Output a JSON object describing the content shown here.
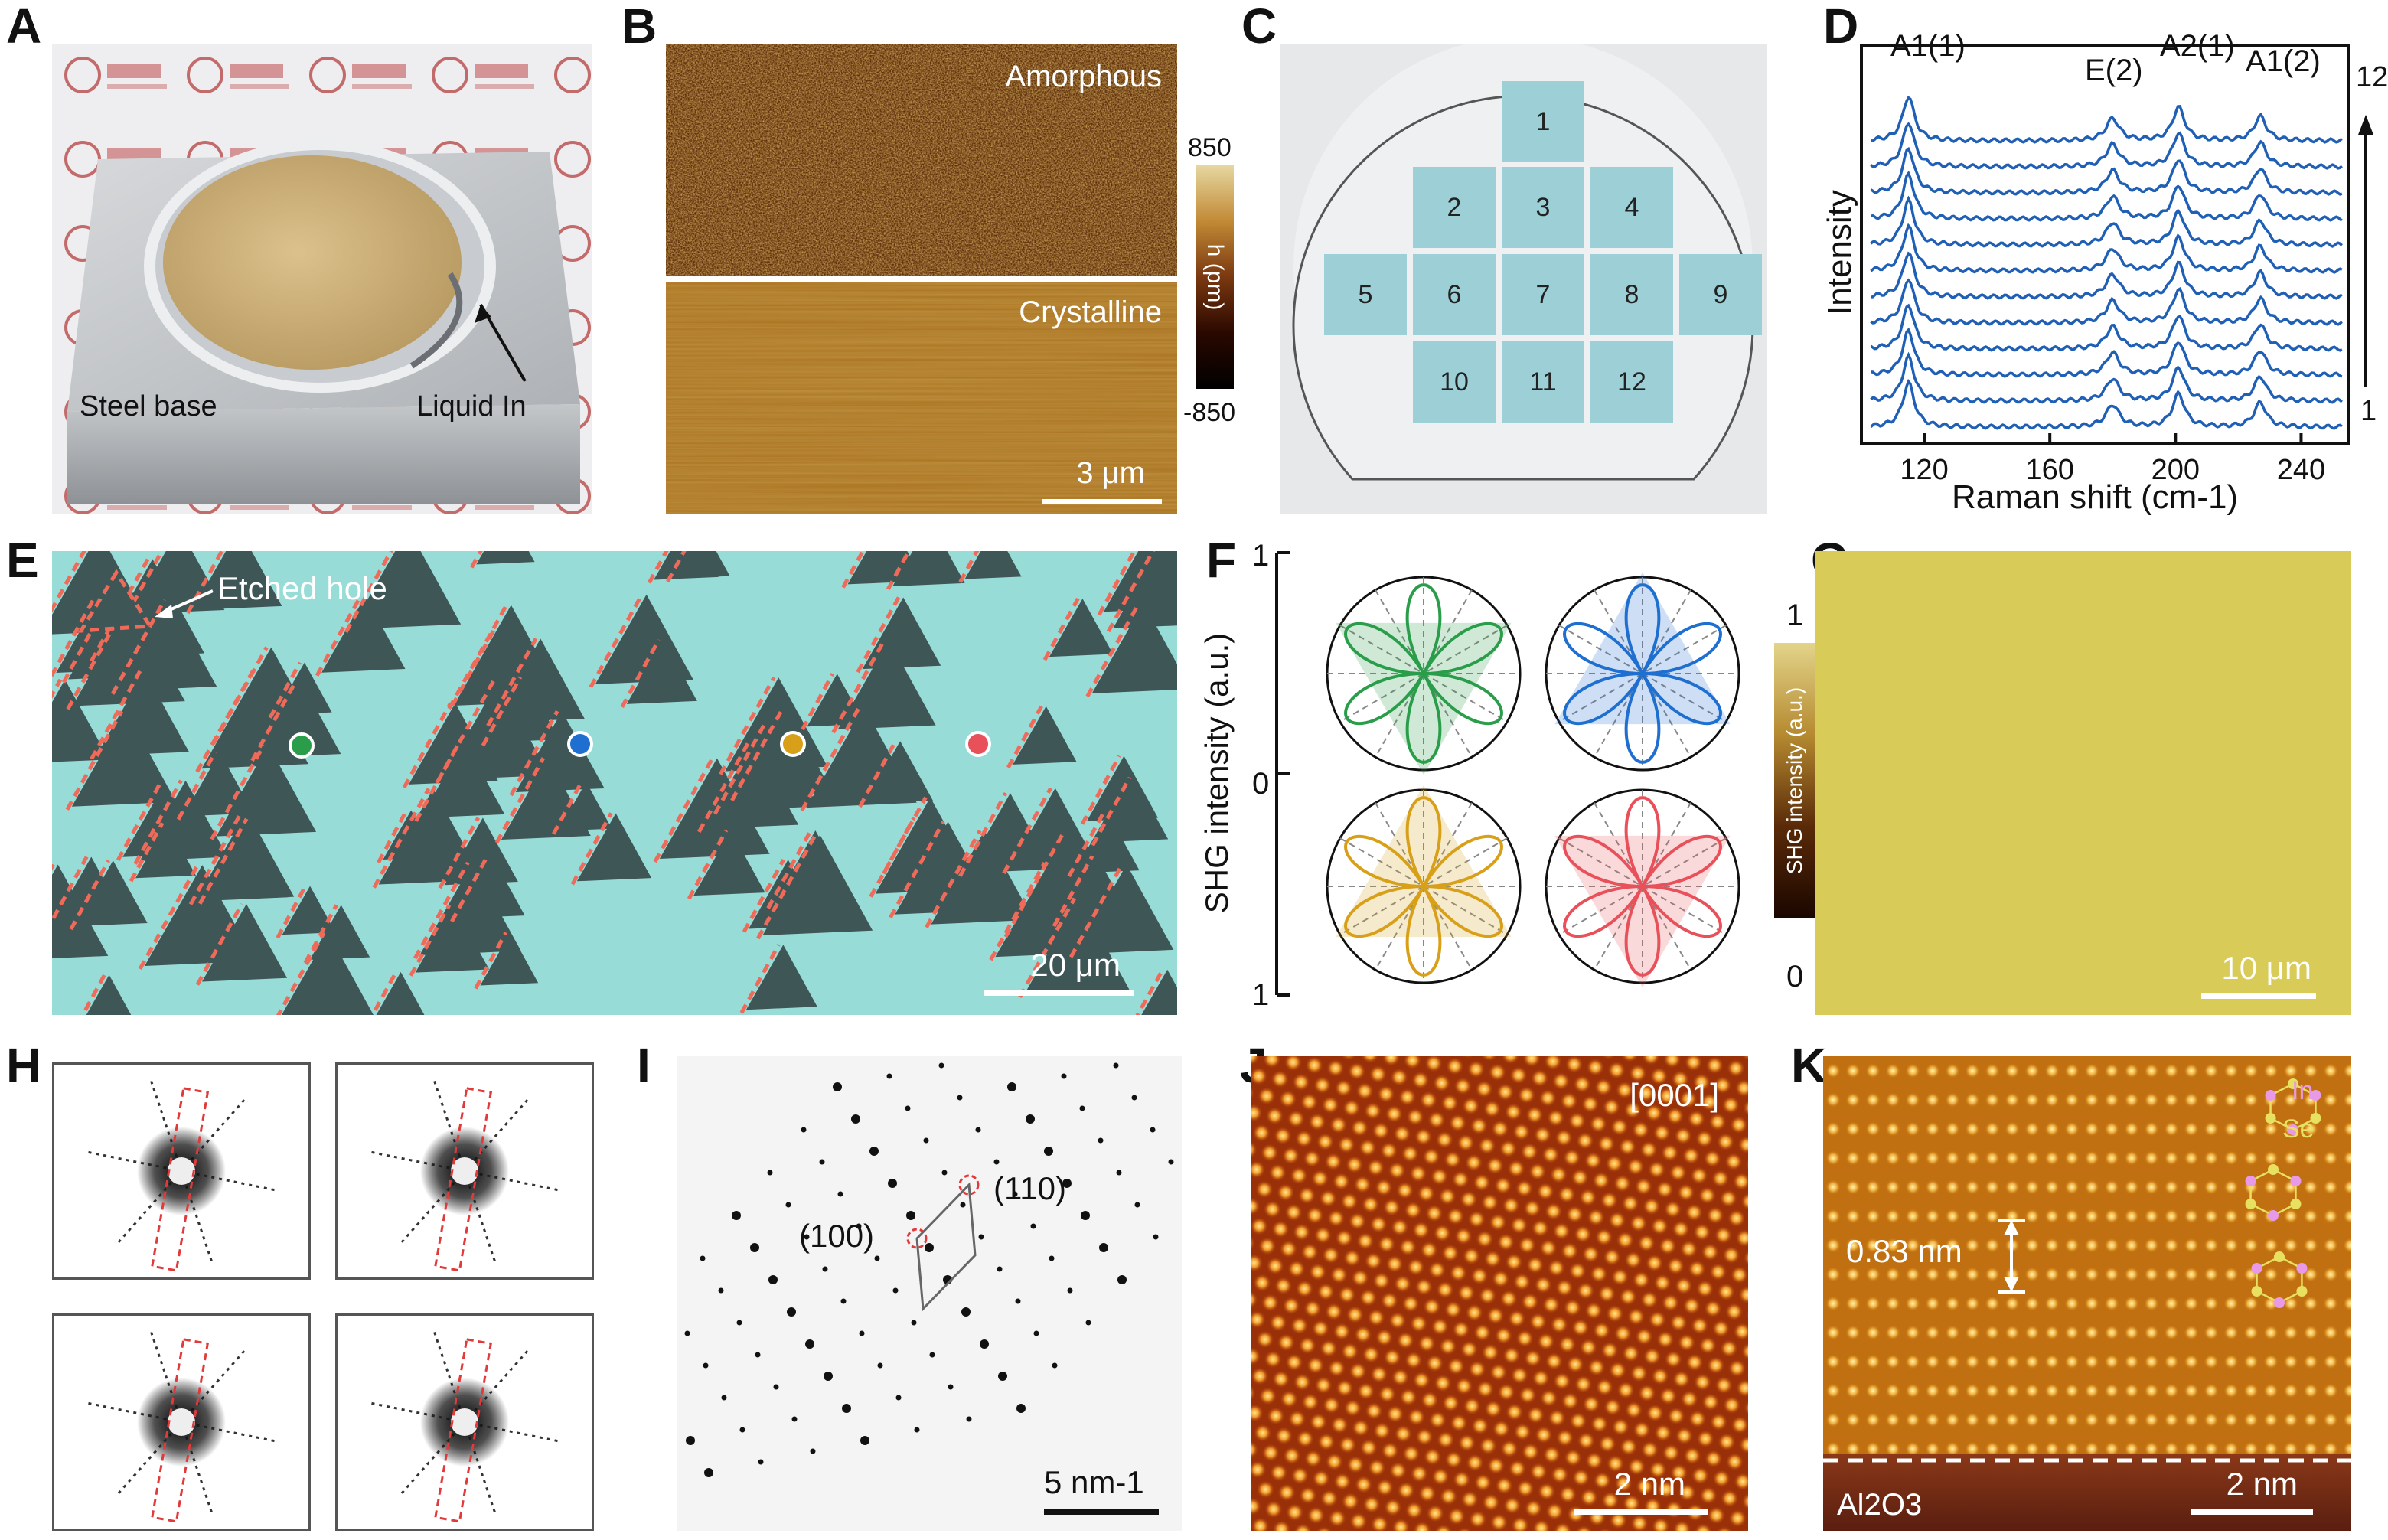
{
  "panels": {
    "A": {
      "label": "A",
      "steel": "Steel base",
      "liquid": "Liquid In"
    },
    "B": {
      "label": "B",
      "top": "Amorphous",
      "bottom": "Crystalline",
      "scale": "3 μm",
      "cmax": "850",
      "cmin": "-850",
      "ctitle": "h (pm)"
    },
    "C": {
      "label": "C",
      "squares": [
        "1",
        "2",
        "3",
        "4",
        "5",
        "6",
        "7",
        "8",
        "9",
        "10",
        "11",
        "12"
      ]
    },
    "D": {
      "label": "D",
      "ylabel": "Intensity",
      "xlabel": "Raman shift (cm-1)",
      "peaks": [
        "A1(1)",
        "E(2)",
        "A2(1)",
        "A1(2)"
      ],
      "ticks": [
        "120",
        "160",
        "200",
        "240"
      ],
      "top_index": "12",
      "bottom_index": "1"
    },
    "E": {
      "label": "E",
      "annot": "Etched hole",
      "scale": "20 μm"
    },
    "F": {
      "label": "F",
      "ylabel": "SHG intensity (a.u.)",
      "ticks": [
        "1",
        "0",
        "1"
      ]
    },
    "G": {
      "label": "G",
      "cmax": "1",
      "cmin": "0",
      "ctitle": "SHG intensity (a.u.)",
      "scale": "10 μm"
    },
    "H": {
      "label": "H"
    },
    "I": {
      "label": "I",
      "s1": "(100)",
      "s2": "(110)",
      "scale": "5 nm-1"
    },
    "J": {
      "label": "J",
      "zone": "[0001]",
      "scale": "2 nm"
    },
    "K": {
      "label": "K",
      "spacing": "0.83 nm",
      "substrate": "Al2O3",
      "in": "In",
      "se": "Se",
      "scale": "2 nm"
    }
  },
  "colors": {
    "raman_line": "#1f5fb5",
    "shg_green": "#2a9d4a",
    "shg_blue": "#1f6fd0",
    "shg_orange": "#d8a018",
    "shg_red": "#e8505a",
    "dash_red": "#f06a5a",
    "wafer_square": "#9ccfd6",
    "flake_bg": "#98dcd8",
    "flake_dark": "#3e5656",
    "shg_map": "#d8cb58"
  }
}
